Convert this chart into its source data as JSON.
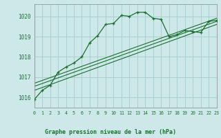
{
  "title": "Graphe pression niveau de la mer (hPa)",
  "bg_color": "#cce8e8",
  "grid_color": "#aacfcf",
  "line_color": "#1a6e2e",
  "dark_line_color": "#1a5e28",
  "xlim": [
    0,
    23
  ],
  "ylim": [
    1015.5,
    1020.6
  ],
  "yticks": [
    1016,
    1017,
    1018,
    1019,
    1020
  ],
  "xticks": [
    0,
    1,
    2,
    3,
    4,
    5,
    6,
    7,
    8,
    9,
    10,
    11,
    12,
    13,
    14,
    15,
    16,
    17,
    18,
    19,
    20,
    21,
    22,
    23
  ],
  "main_x": [
    0,
    1,
    2,
    3,
    4,
    5,
    6,
    7,
    8,
    9,
    10,
    11,
    12,
    13,
    14,
    15,
    16,
    17,
    18,
    19,
    20,
    21,
    22,
    23
  ],
  "main_y": [
    1015.9,
    1016.35,
    1016.6,
    1017.25,
    1017.5,
    1017.7,
    1018.0,
    1018.7,
    1019.05,
    1019.6,
    1019.65,
    1020.05,
    1020.0,
    1020.2,
    1020.2,
    1019.9,
    1019.85,
    1019.0,
    1019.1,
    1019.3,
    1019.25,
    1019.2,
    1019.75,
    1019.8
  ],
  "trend1_x": [
    0,
    23
  ],
  "trend1_y": [
    1016.35,
    1019.6
  ],
  "trend2_x": [
    0,
    23
  ],
  "trend2_y": [
    1016.55,
    1019.75
  ],
  "trend3_x": [
    0,
    23
  ],
  "trend3_y": [
    1016.7,
    1019.9
  ]
}
